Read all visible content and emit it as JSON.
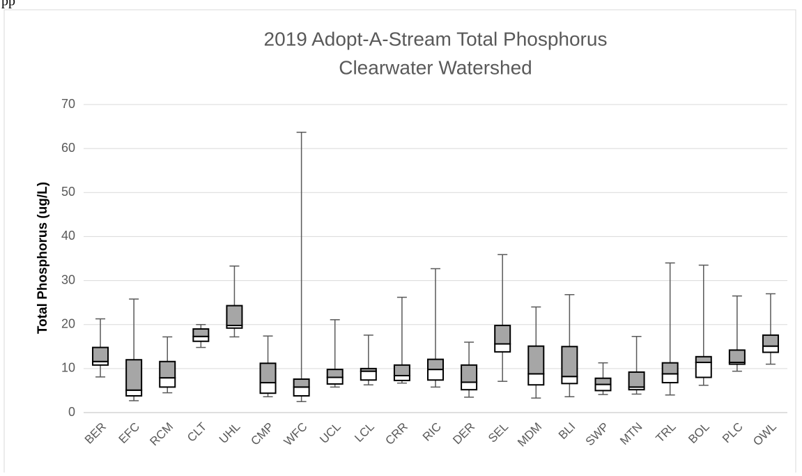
{
  "page_fragment": "pp",
  "chart_data": {
    "type": "box",
    "title": [
      "2019 Adopt-A-Stream Total Phosphorus",
      "Clearwater Watershed"
    ],
    "y_label": "Total Phosphorus (ug/L)",
    "categories": [
      "BER",
      "EFC",
      "RCM",
      "CLT",
      "UHL",
      "CMP",
      "WFC",
      "UCL",
      "LCL",
      "CRR",
      "RIC",
      "DER",
      "SEL",
      "MDM",
      "BLI",
      "SWP",
      "MTN",
      "TRL",
      "BOL",
      "PLC",
      "OWL"
    ],
    "min": [
      8.1,
      2.7,
      4.5,
      14.8,
      17.2,
      3.6,
      2.5,
      5.8,
      6.3,
      6.7,
      5.8,
      3.5,
      7.1,
      3.3,
      3.6,
      4.1,
      4.2,
      4.0,
      6.2,
      9.4,
      11.0
    ],
    "q1": [
      10.8,
      3.8,
      5.8,
      16.2,
      19.2,
      4.4,
      3.8,
      6.5,
      7.4,
      7.3,
      7.4,
      5.2,
      13.8,
      6.3,
      6.6,
      5.0,
      5.2,
      6.8,
      8.0,
      11.0,
      13.7
    ],
    "median": [
      11.6,
      5.1,
      7.9,
      17.3,
      19.8,
      6.8,
      5.8,
      8.0,
      9.4,
      8.4,
      9.8,
      6.9,
      15.6,
      8.8,
      8.2,
      6.4,
      5.8,
      8.8,
      11.4,
      11.4,
      15.1
    ],
    "q3": [
      14.8,
      12.0,
      11.6,
      19.0,
      24.3,
      11.2,
      7.6,
      9.8,
      10.0,
      10.8,
      12.1,
      10.8,
      19.8,
      15.1,
      15.0,
      7.8,
      9.2,
      11.3,
      12.7,
      14.2,
      17.6
    ],
    "max": [
      21.3,
      25.8,
      17.2,
      20.0,
      33.3,
      17.4,
      63.7,
      21.1,
      17.6,
      26.2,
      32.7,
      16.0,
      35.9,
      24.0,
      26.8,
      11.3,
      17.3,
      34.0,
      33.5,
      26.5,
      27.0
    ],
    "ylim": [
      0,
      70
    ],
    "yticks": [
      0,
      10,
      20,
      30,
      40,
      50,
      60,
      70
    ],
    "grid": true,
    "colors": {
      "upper": "#a6a6a6",
      "lower": "#ffffff",
      "whisker": "#595959"
    }
  }
}
